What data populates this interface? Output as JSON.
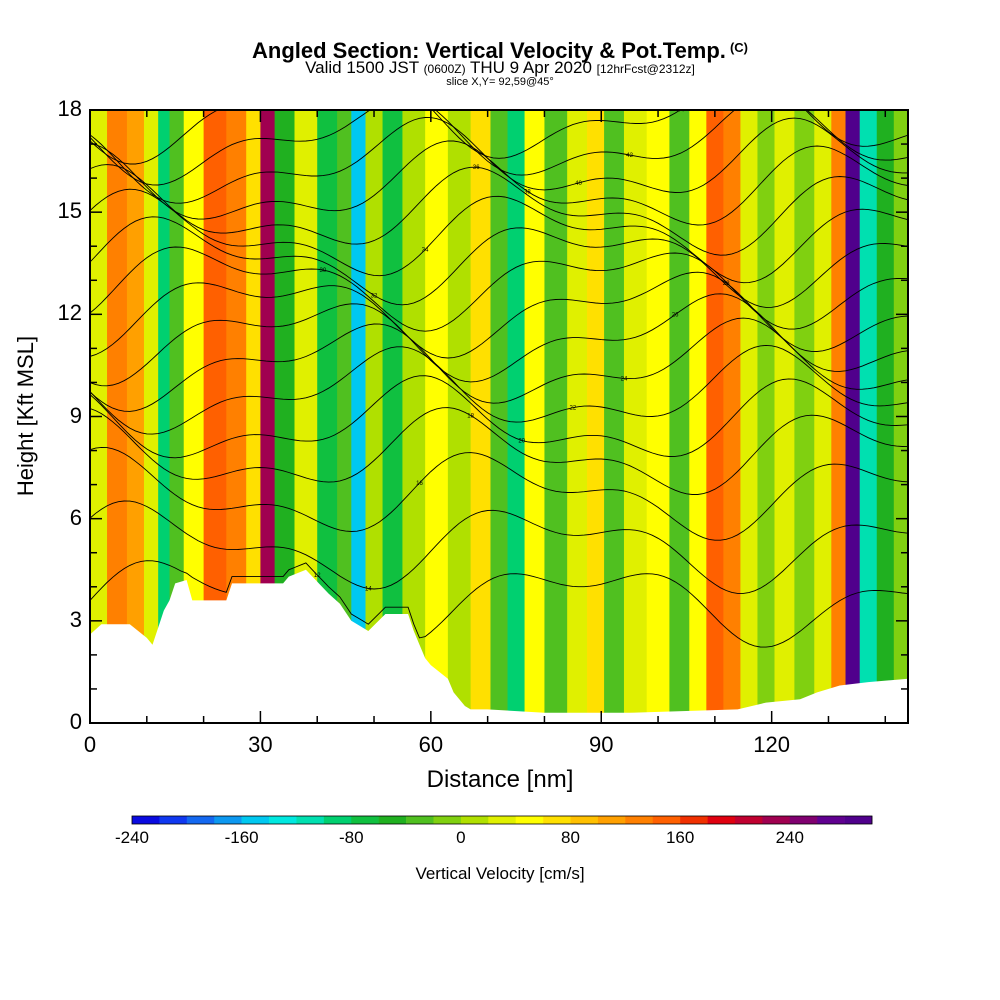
{
  "header": {
    "title": "Angled Section: Vertical Velocity & Pot.Temp.",
    "title_suffix": "(C)",
    "subtitle_main_1": "Valid 1500 JST",
    "subtitle_small_1": "(0600Z)",
    "subtitle_main_2": "THU 9 Apr 2020",
    "subtitle_small_2": "[12hrFcst@2312z]",
    "slice": "slice X,Y= 92,59@45°"
  },
  "chart_data": {
    "type": "heatmap",
    "title": "Angled Section: Vertical Velocity & Pot.Temp.",
    "xlabel": "Distance [nm]",
    "ylabel": "Height [Kft MSL]",
    "xlim": [
      0,
      144
    ],
    "ylim": [
      0,
      18
    ],
    "x_ticks": [
      "0",
      "30",
      "60",
      "90",
      "120"
    ],
    "y_ticks": [
      "0",
      "3",
      "6",
      "9",
      "12",
      "15",
      "18"
    ],
    "x_tick_values": [
      0,
      30,
      60,
      90,
      120
    ],
    "y_tick_values": [
      0,
      3,
      6,
      9,
      12,
      15,
      18
    ],
    "colorbar": {
      "label": "Vertical Velocity [cm/s]",
      "range": [
        -240,
        300
      ],
      "step": 20,
      "tick_labels": [
        "-240",
        "-160",
        "-80",
        "0",
        "80",
        "160",
        "240"
      ],
      "tick_values": [
        -240,
        -160,
        -80,
        0,
        80,
        160,
        240
      ],
      "colors": [
        "#0a0ae0",
        "#1038f0",
        "#1468f0",
        "#0c98f0",
        "#00c8f0",
        "#00e8e0",
        "#00e0b0",
        "#00d070",
        "#10c040",
        "#20b020",
        "#50c020",
        "#80d010",
        "#b0e000",
        "#e0f000",
        "#ffff00",
        "#ffe000",
        "#ffc000",
        "#ffa000",
        "#ff8000",
        "#ff6000",
        "#f03000",
        "#e00010",
        "#c00030",
        "#a00050",
        "#800070",
        "#600090",
        "#50008c"
      ]
    },
    "vertical_velocity_columns": [
      {
        "x": 1,
        "w": 20
      },
      {
        "x": 5,
        "w": 120
      },
      {
        "x": 8,
        "w": 110
      },
      {
        "x": 11,
        "w": 20
      },
      {
        "x": 13,
        "w": -90
      },
      {
        "x": 15,
        "w": -30
      },
      {
        "x": 18,
        "w": 40
      },
      {
        "x": 22,
        "w": 140
      },
      {
        "x": 26,
        "w": 120
      },
      {
        "x": 29,
        "w": 60
      },
      {
        "x": 31,
        "w": 220
      },
      {
        "x": 34,
        "w": -60
      },
      {
        "x": 38,
        "w": 20
      },
      {
        "x": 42,
        "w": -80
      },
      {
        "x": 45,
        "w": -40
      },
      {
        "x": 47,
        "w": -150
      },
      {
        "x": 50,
        "w": 10
      },
      {
        "x": 53,
        "w": -70
      },
      {
        "x": 57,
        "w": 10
      },
      {
        "x": 61,
        "w": 40
      },
      {
        "x": 65,
        "w": 0
      },
      {
        "x": 69,
        "w": 60
      },
      {
        "x": 72,
        "w": -40
      },
      {
        "x": 75,
        "w": -90
      },
      {
        "x": 78,
        "w": 50
      },
      {
        "x": 82,
        "w": -30
      },
      {
        "x": 86,
        "w": 20
      },
      {
        "x": 89,
        "w": 70
      },
      {
        "x": 92,
        "w": -40
      },
      {
        "x": 96,
        "w": 20
      },
      {
        "x": 100,
        "w": 40
      },
      {
        "x": 104,
        "w": -40
      },
      {
        "x": 107,
        "w": 50
      },
      {
        "x": 110,
        "w": 140
      },
      {
        "x": 113,
        "w": 120
      },
      {
        "x": 116,
        "w": 30
      },
      {
        "x": 119,
        "w": -20
      },
      {
        "x": 122,
        "w": 20
      },
      {
        "x": 126,
        "w": -20
      },
      {
        "x": 129,
        "w": 30
      },
      {
        "x": 132,
        "w": 120
      },
      {
        "x": 134,
        "w": 290
      },
      {
        "x": 137,
        "w": -110
      },
      {
        "x": 140,
        "w": -60
      },
      {
        "x": 143,
        "w": -10
      }
    ],
    "terrain_height_kft": [
      [
        0,
        2.6
      ],
      [
        2,
        2.9
      ],
      [
        7,
        2.9
      ],
      [
        10,
        2.5
      ],
      [
        11,
        2.3
      ],
      [
        12,
        2.8
      ],
      [
        13,
        3.3
      ],
      [
        14,
        3.6
      ],
      [
        15,
        4.1
      ],
      [
        17,
        4.2
      ],
      [
        18,
        3.6
      ],
      [
        24,
        3.6
      ],
      [
        25,
        4.1
      ],
      [
        34,
        4.1
      ],
      [
        35,
        4.3
      ],
      [
        38,
        4.5
      ],
      [
        42,
        3.8
      ],
      [
        44,
        3.5
      ],
      [
        46,
        3.0
      ],
      [
        49,
        2.7
      ],
      [
        52,
        3.2
      ],
      [
        56,
        3.2
      ],
      [
        57,
        2.7
      ],
      [
        58,
        2.3
      ],
      [
        59,
        1.9
      ],
      [
        60,
        1.7
      ],
      [
        63,
        1.3
      ],
      [
        64,
        0.9
      ],
      [
        66,
        0.5
      ],
      [
        67,
        0.4
      ],
      [
        70,
        0.4
      ],
      [
        80,
        0.3
      ],
      [
        95,
        0.3
      ],
      [
        114,
        0.4
      ],
      [
        119,
        0.6
      ],
      [
        125,
        0.7
      ],
      [
        128,
        0.9
      ],
      [
        132,
        1.1
      ],
      [
        137,
        1.2
      ],
      [
        144,
        1.3
      ]
    ],
    "pot_temp_contours_kft": [
      {
        "base": 3.6,
        "label": "12"
      },
      {
        "base": 5.2,
        "label": "14"
      },
      {
        "base": 6.7,
        "label": "16"
      },
      {
        "base": 7.9,
        "label": "18"
      },
      {
        "base": 8.8,
        "label": "20"
      },
      {
        "base": 9.7,
        "label": "22"
      },
      {
        "base": 10.5,
        "label": "24"
      },
      {
        "base": 11.3,
        "label": "26"
      },
      {
        "base": 12.1,
        "label": "28"
      },
      {
        "base": 12.9,
        "label": "30"
      },
      {
        "base": 13.6,
        "label": "32"
      },
      {
        "base": 14.3,
        "label": "34"
      },
      {
        "base": 15.0,
        "label": "36"
      },
      {
        "base": 15.7,
        "label": "38"
      },
      {
        "base": 16.4,
        "label": "40"
      },
      {
        "base": 17.1,
        "label": "42"
      },
      {
        "base": 17.8,
        "label": "44"
      }
    ]
  }
}
